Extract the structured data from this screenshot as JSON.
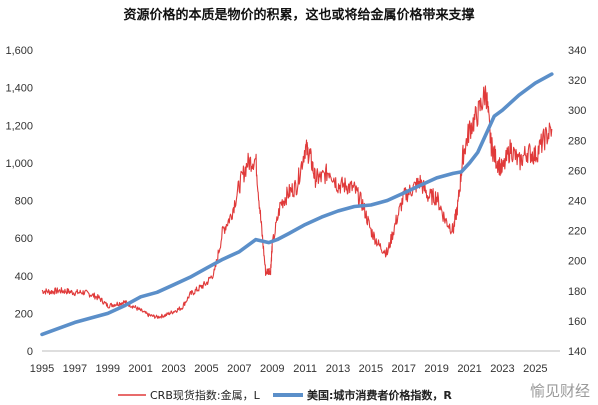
{
  "chart_data": {
    "type": "line",
    "title": "资源价格的本质是物价的积累，这也或将给金属价格带来支撑",
    "x_ticks": [
      "1995",
      "1997",
      "1999",
      "2001",
      "2003",
      "2005",
      "2007",
      "2009",
      "2011",
      "2013",
      "2015",
      "2017",
      "2019",
      "2021",
      "2023",
      "2025"
    ],
    "x_range": [
      1995,
      2026.5
    ],
    "left_axis": {
      "ylim": [
        0,
        1600
      ],
      "ticks": [
        "0",
        "200",
        "400",
        "600",
        "800",
        "1,000",
        "1,200",
        "1,400",
        "1,600"
      ]
    },
    "right_axis": {
      "ylim": [
        140,
        340
      ],
      "ticks": [
        "140",
        "160",
        "180",
        "200",
        "220",
        "240",
        "260",
        "280",
        "300",
        "320",
        "340"
      ]
    },
    "grid": false,
    "legend_position": "bottom",
    "series": [
      {
        "name": "CRB现货指数:金属，L",
        "axis": "left",
        "color": "#e03a3a",
        "x": [
          1995,
          1995.5,
          1996,
          1996.5,
          1997,
          1997.5,
          1998,
          1998.5,
          1999,
          1999.5,
          2000,
          2000.5,
          2001,
          2001.5,
          2002,
          2002.5,
          2003,
          2003.5,
          2004,
          2004.5,
          2005,
          2005.5,
          2006,
          2006.5,
          2007,
          2007.5,
          2008,
          2008.3,
          2008.6,
          2008.9,
          2009,
          2009.5,
          2010,
          2010.5,
          2011,
          2011.3,
          2011.6,
          2012,
          2012.5,
          2013,
          2013.5,
          2014,
          2014.5,
          2015,
          2015.5,
          2016,
          2016.5,
          2017,
          2017.5,
          2018,
          2018.5,
          2019,
          2019.5,
          2020,
          2020.3,
          2020.6,
          2021,
          2021.5,
          2022,
          2022.3,
          2022.6,
          2023,
          2023.5,
          2024,
          2024.5,
          2025,
          2025.5,
          2026
        ],
        "values": [
          320,
          315,
          320,
          318,
          310,
          312,
          300,
          280,
          240,
          250,
          260,
          240,
          215,
          190,
          180,
          190,
          210,
          230,
          300,
          330,
          360,
          420,
          640,
          720,
          880,
          1000,
          1020,
          700,
          420,
          430,
          560,
          780,
          840,
          880,
          1080,
          1040,
          920,
          920,
          960,
          880,
          880,
          860,
          780,
          640,
          560,
          520,
          680,
          820,
          860,
          900,
          820,
          820,
          700,
          640,
          780,
          1040,
          1180,
          1260,
          1380,
          1100,
          1020,
          960,
          1080,
          1000,
          1060,
          1040,
          1120,
          1180
        ]
      },
      {
        "name": "美国:城市消费者价格指数，R",
        "axis": "right",
        "color": "#5b8fc9",
        "x": [
          1995,
          1996,
          1997,
          1998,
          1999,
          2000,
          2001,
          2002,
          2003,
          2004,
          2005,
          2006,
          2007,
          2008,
          2008.8,
          2009.3,
          2010,
          2011,
          2012,
          2013,
          2014,
          2015,
          2016,
          2017,
          2018,
          2019,
          2020,
          2020.5,
          2021,
          2021.5,
          2022,
          2022.5,
          2023,
          2024,
          2025,
          2026
        ],
        "values": [
          151,
          155,
          159,
          162,
          165,
          170,
          176,
          179,
          184,
          189,
          195,
          201,
          206,
          214,
          212,
          214,
          218,
          224,
          229,
          233,
          236,
          237,
          240,
          245,
          250,
          255,
          258,
          259,
          265,
          272,
          284,
          296,
          300,
          310,
          318,
          324
        ]
      }
    ],
    "watermark": "愉见财经"
  }
}
